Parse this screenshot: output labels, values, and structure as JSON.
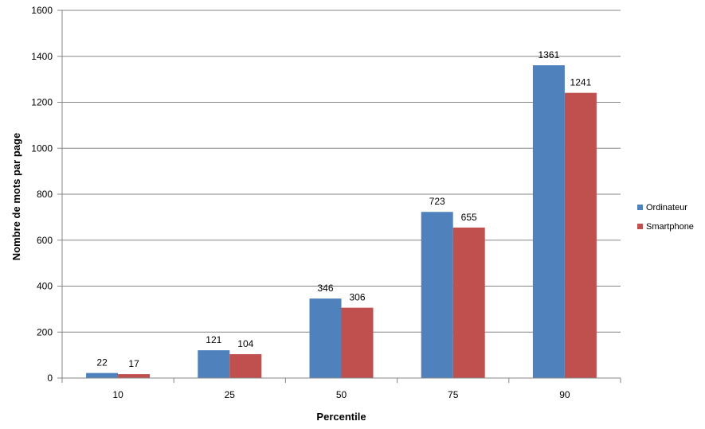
{
  "chart_data": {
    "type": "bar",
    "title": "",
    "xlabel": "Percentile",
    "ylabel": "Nombre de mots par page",
    "categories": [
      "10",
      "25",
      "50",
      "75",
      "90"
    ],
    "series": [
      {
        "name": "Ordinateur",
        "color": "#4F81BD",
        "values": [
          22,
          121,
          346,
          723,
          1361
        ]
      },
      {
        "name": "Smartphone",
        "color": "#C0504D",
        "values": [
          17,
          104,
          306,
          655,
          1241
        ]
      }
    ],
    "ylim": [
      0,
      1600
    ],
    "yticks": [
      0,
      200,
      400,
      600,
      800,
      1000,
      1200,
      1400,
      1600
    ],
    "grid": true,
    "legend_position": "right"
  }
}
